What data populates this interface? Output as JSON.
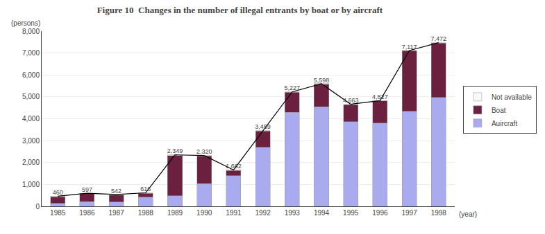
{
  "chart_data": {
    "type": "bar",
    "title": "Figure 10  Changes in the number of illegal entrants by boat or by aircraft",
    "xlabel": "(year)",
    "ylabel": "(persons)",
    "categories": [
      "1985",
      "1986",
      "1987",
      "1988",
      "1989",
      "1990",
      "1991",
      "1992",
      "1993",
      "1994",
      "1995",
      "1996",
      "1997",
      "1998"
    ],
    "stacked": true,
    "series": [
      {
        "name": "Auircraft",
        "type": "bar",
        "color": "#AAAAEE",
        "values": [
          130,
          220,
          200,
          420,
          480,
          1040,
          1400,
          2700,
          4290,
          4540,
          3870,
          3810,
          4340,
          4980
        ]
      },
      {
        "name": "Boat",
        "type": "bar",
        "color": "#6B2040",
        "values": [
          300,
          350,
          320,
          180,
          1840,
          1260,
          240,
          740,
          920,
          1040,
          775,
          1000,
          2760,
          2470
        ]
      },
      {
        "name": "Not available",
        "type": "bar",
        "color": "#F8F8F8",
        "values": [
          30,
          27,
          22,
          16,
          29,
          20,
          22,
          19,
          17,
          18,
          18,
          17,
          17,
          22
        ]
      },
      {
        "type": "line",
        "color": "black",
        "data_labels": true,
        "values": [
          460,
          597,
          542,
          616,
          2349,
          2320,
          1662,
          3459,
          5227,
          5598,
          4663,
          4827,
          7117,
          7472
        ],
        "value_labels": [
          "460",
          "597",
          "542",
          "616",
          "2,349",
          "2,320",
          "1,662",
          "3,459",
          "5,227",
          "5,598",
          "4,663",
          "4,827",
          "7,117",
          "7,472"
        ]
      }
    ],
    "ylim": [
      0,
      8000
    ],
    "yticks": [
      0,
      {
        "value": 1000,
        "label": "1,000"
      },
      {
        "value": 2000,
        "label": "2,000"
      },
      {
        "value": 3000,
        "label": "3,000"
      },
      {
        "value": 4000,
        "label": "4,000"
      },
      {
        "value": 5000,
        "label": "5,000"
      },
      {
        "value": 6000,
        "label": "6,000"
      },
      {
        "value": 7000,
        "label": "7,000"
      },
      {
        "value": 8000,
        "label": "8,000"
      }
    ],
    "grid": true,
    "legend": "right"
  }
}
